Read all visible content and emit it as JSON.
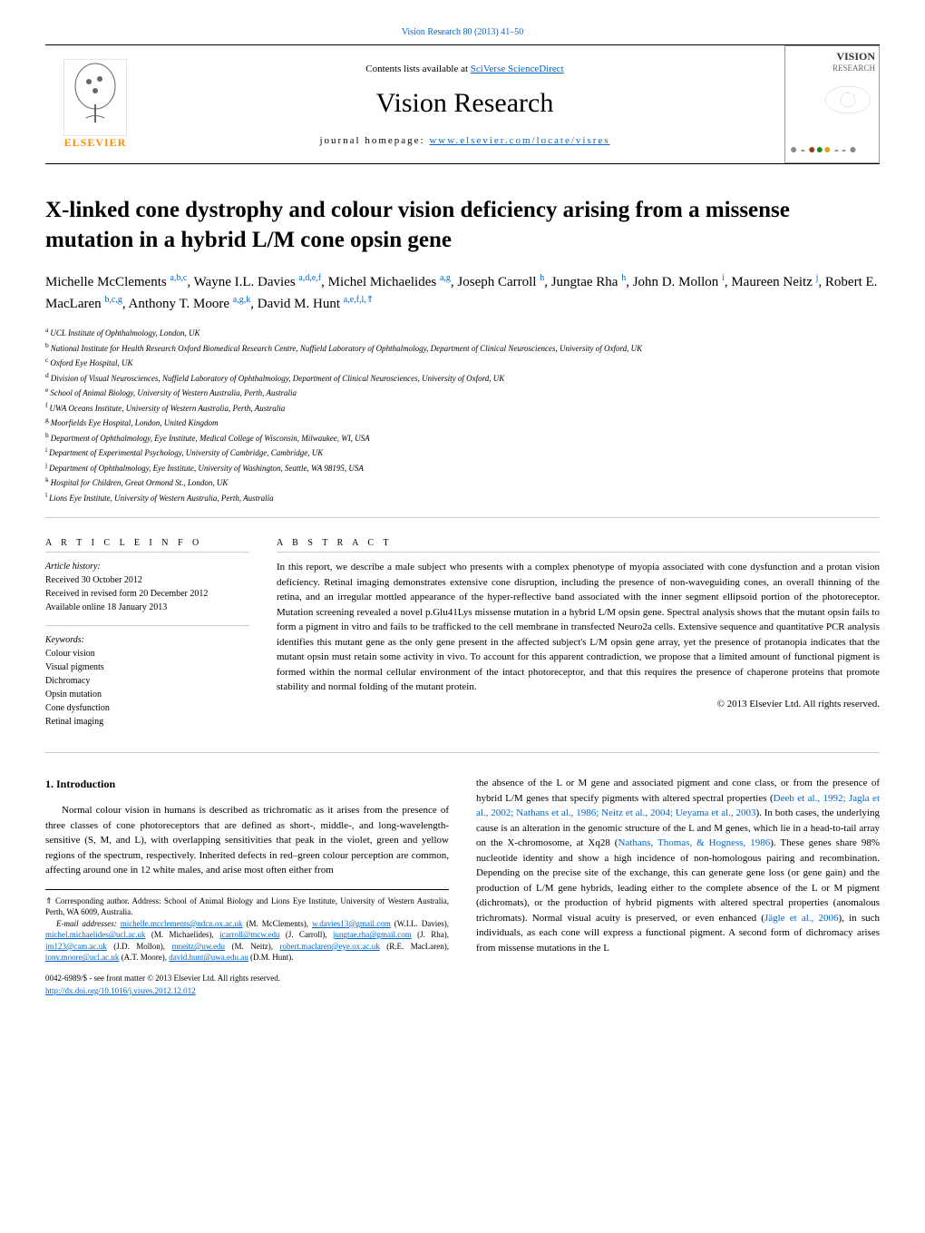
{
  "header": {
    "crossref": "Vision Research 80 (2013) 41–50",
    "contents_prefix": "Contents lists available at ",
    "contents_link": "SciVerse ScienceDirect",
    "journal_title": "Vision Research",
    "homepage_prefix": "journal homepage: ",
    "homepage_link": "www.elsevier.com/locate/visres",
    "cover_title": "VISION",
    "cover_sub": "RESEARCH",
    "elsevier": "ELSEVIER"
  },
  "article": {
    "title": "X-linked cone dystrophy and colour vision deficiency arising from a missense mutation in a hybrid L/M cone opsin gene",
    "authors_html_parts": [
      {
        "name": "Michelle McClements ",
        "sup": "a,b,c"
      },
      {
        "name": ", Wayne I.L. Davies ",
        "sup": "a,d,e,f"
      },
      {
        "name": ", Michel Michaelides ",
        "sup": "a,g"
      },
      {
        "name": ", Joseph Carroll ",
        "sup": "h"
      },
      {
        "name": ", Jungtae Rha ",
        "sup": "h"
      },
      {
        "name": ", John D. Mollon ",
        "sup": "i"
      },
      {
        "name": ", Maureen Neitz ",
        "sup": "j"
      },
      {
        "name": ", Robert E. MacLaren ",
        "sup": "b,c,g"
      },
      {
        "name": ", Anthony T. Moore ",
        "sup": "a,g,k"
      },
      {
        "name": ", David M. Hunt ",
        "sup": "a,e,f,l,⇑"
      }
    ],
    "affiliations": [
      {
        "sup": "a",
        "text": "UCL Institute of Ophthalmology, London, UK"
      },
      {
        "sup": "b",
        "text": "National Institute for Health Research Oxford Biomedical Research Centre, Nuffield Laboratory of Ophthalmology, Department of Clinical Neurosciences, University of Oxford, UK"
      },
      {
        "sup": "c",
        "text": "Oxford Eye Hospital, UK"
      },
      {
        "sup": "d",
        "text": "Division of Visual Neurosciences, Nuffield Laboratory of Ophthalmology, Department of Clinical Neurosciences, University of Oxford, UK"
      },
      {
        "sup": "e",
        "text": "School of Animal Biology, University of Western Australia, Perth, Australia"
      },
      {
        "sup": "f",
        "text": "UWA Oceans Institute, University of Western Australia, Perth, Australia"
      },
      {
        "sup": "g",
        "text": "Moorfields Eye Hospital, London, United Kingdom"
      },
      {
        "sup": "h",
        "text": "Department of Ophthalmology, Eye Institute, Medical College of Wisconsin, Milwaukee, WI, USA"
      },
      {
        "sup": "i",
        "text": "Department of Experimental Psychology, University of Cambridge, Cambridge, UK"
      },
      {
        "sup": "j",
        "text": "Department of Ophthalmology, Eye Institute, University of Washington, Seattle, WA 98195, USA"
      },
      {
        "sup": "k",
        "text": "Hospital for Children, Great Ormond St., London, UK"
      },
      {
        "sup": "l",
        "text": "Lions Eye Institute, University of Western Australia, Perth, Australia"
      }
    ]
  },
  "info": {
    "heading": "A R T I C L E   I N F O",
    "history_label": "Article history:",
    "history": [
      "Received 30 October 2012",
      "Received in revised form 20 December 2012",
      "Available online 18 January 2013"
    ],
    "keywords_label": "Keywords:",
    "keywords": [
      "Colour vision",
      "Visual pigments",
      "Dichromacy",
      "Opsin mutation",
      "Cone dysfunction",
      "Retinal imaging"
    ]
  },
  "abstract": {
    "heading": "A B S T R A C T",
    "text": "In this report, we describe a male subject who presents with a complex phenotype of myopia associated with cone dysfunction and a protan vision deficiency. Retinal imaging demonstrates extensive cone disruption, including the presence of non-waveguiding cones, an overall thinning of the retina, and an irregular mottled appearance of the hyper-reflective band associated with the inner segment ellipsoid portion of the photoreceptor. Mutation screening revealed a novel p.Glu41Lys missense mutation in a hybrid L/M opsin gene. Spectral analysis shows that the mutant opsin fails to form a pigment in vitro and fails to be trafficked to the cell membrane in transfected Neuro2a cells. Extensive sequence and quantitative PCR analysis identifies this mutant gene as the only gene present in the affected subject's L/M opsin gene array, yet the presence of protanopia indicates that the mutant opsin must retain some activity in vivo. To account for this apparent contradiction, we propose that a limited amount of functional pigment is formed within the normal cellular environment of the intact photoreceptor, and that this requires the presence of chaperone proteins that promote stability and normal folding of the mutant protein.",
    "copyright": "© 2013 Elsevier Ltd. All rights reserved."
  },
  "intro": {
    "heading": "1. Introduction",
    "p1_a": "Normal colour vision in humans is described as trichromatic as it arises from the presence of three classes of cone photoreceptors that are defined as short-, middle-, and long-wavelength-sensitive (S, M, and L), with overlapping sensitivities that peak in the violet, green and yellow regions of the spectrum, respectively. Inherited defects in red–green colour perception are common, affecting around one in 12 white males, and arise most often either from",
    "p1_b1": "the absence of the L or M gene and associated pigment and cone class, or from the presence of hybrid L/M genes that specify pigments with altered spectral properties (",
    "ref1": "Deeb et al., 1992; Jagla et al., 2002; Nathans et al., 1986; Neitz et al., 2004; Ueyama et al., 2003",
    "p1_b2": "). In both cases, the underlying cause is an alteration in the genomic structure of the L and M genes, which lie in a head-to-tail array on the X-chromosome, at Xq28 (",
    "ref2": "Nathans, Thomas, & Hogness, 1986",
    "p1_b3": "). These genes share 98% nucleotide identity and show a high incidence of non-homologous pairing and recombination. Depending on the precise site of the exchange, this can generate gene loss (or gene gain) and the production of L/M gene hybrids, leading either to the complete absence of the L or M pigment (dichromats), or the production of hybrid pigments with altered spectral properties (anomalous trichromats). Normal visual acuity is preserved, or even enhanced (",
    "ref3": "Jägle et al., 2006",
    "p1_b4": "), in such individuals, as each cone will express a functional pigment. A second form of dichromacy arises from missense mutations in the L"
  },
  "footnotes": {
    "corr_sym": "⇑",
    "corr_text": " Corresponding author. Address: School of Animal Biology and Lions Eye Institute, University of Western Australia, Perth, WA 6009, Australia.",
    "email_label": "E-mail addresses: ",
    "emails": [
      {
        "addr": "michelle.mcclements@ndcn.ox.ac.uk",
        "who": " (M. McClements), "
      },
      {
        "addr": "w.davies13@gmail.com",
        "who": " (W.I.L. Davies), "
      },
      {
        "addr": "michel.michaelides@ucl.ac.uk",
        "who": " (M. Michaelides), "
      },
      {
        "addr": "jcarroll@mcw.edu",
        "who": " (J. Carroll), "
      },
      {
        "addr": "jungtae.rha@gmail.com",
        "who": " (J. Rha), "
      },
      {
        "addr": "jm123@cam.ac.uk",
        "who": " (J.D. Mollon), "
      },
      {
        "addr": "mneitz@uw.edu",
        "who": " (M. Neitz), "
      },
      {
        "addr": "robert.maclaren@eye.ox.ac.uk",
        "who": " (R.E. MacLaren), "
      },
      {
        "addr": "tony.moore@ucl.ac.uk",
        "who": " (A.T. Moore), "
      },
      {
        "addr": "david.hunt@uwa.edu.au",
        "who": " (D.M. Hunt)."
      }
    ]
  },
  "doi": {
    "line1": "0042-6989/$ - see front matter © 2013 Elsevier Ltd. All rights reserved.",
    "link": "http://dx.doi.org/10.1016/j.visres.2012.12.012"
  }
}
